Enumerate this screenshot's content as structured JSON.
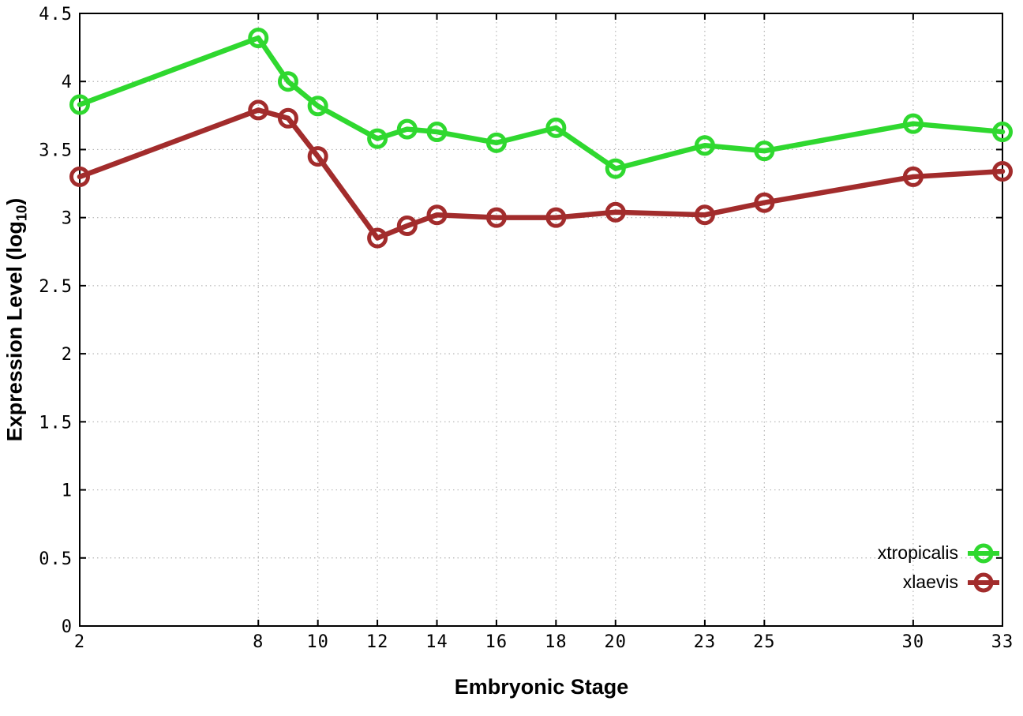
{
  "chart_data": {
    "type": "line",
    "title": "",
    "xlabel": "Embryonic Stage",
    "ylabel": "Expression Level (log10)",
    "ylabel_parts": {
      "main": "Expression Level (log",
      "sub": "10",
      "close": ")"
    },
    "x": [
      2,
      8,
      9,
      10,
      12,
      13,
      14,
      16,
      18,
      20,
      23,
      25,
      30,
      33
    ],
    "series": [
      {
        "name": "xtropicalis",
        "color": "#2fd82f",
        "values": [
          3.83,
          4.32,
          4.0,
          3.82,
          3.58,
          3.65,
          3.63,
          3.55,
          3.66,
          3.36,
          3.53,
          3.49,
          3.69,
          3.63
        ]
      },
      {
        "name": "xlaevis",
        "color": "#a22c2c",
        "values": [
          3.3,
          3.79,
          3.73,
          3.45,
          2.85,
          2.94,
          3.02,
          3.0,
          3.0,
          3.04,
          3.02,
          3.11,
          3.3,
          3.34
        ]
      }
    ],
    "xlim": [
      2,
      33
    ],
    "ylim": [
      0,
      4.5
    ],
    "xticks": [
      2,
      8,
      10,
      12,
      14,
      16,
      18,
      20,
      23,
      25,
      30,
      33
    ],
    "xtick_labels": [
      "2",
      "8",
      "10",
      "12",
      "14",
      "16",
      "18",
      "20",
      "23",
      "25",
      "30",
      "33"
    ],
    "yticks": [
      0,
      0.5,
      1,
      1.5,
      2,
      2.5,
      3,
      3.5,
      4,
      4.5
    ],
    "ytick_labels": [
      "0",
      "0.5",
      "1",
      "1.5",
      "2",
      "2.5",
      "3",
      "3.5",
      "4",
      "4.5"
    ],
    "grid": true,
    "grid_color": "#b5b5b5",
    "axis_color": "#000000",
    "background": "#ffffff",
    "legend_position": "inside-bottom-right",
    "marker": "open-circle"
  }
}
